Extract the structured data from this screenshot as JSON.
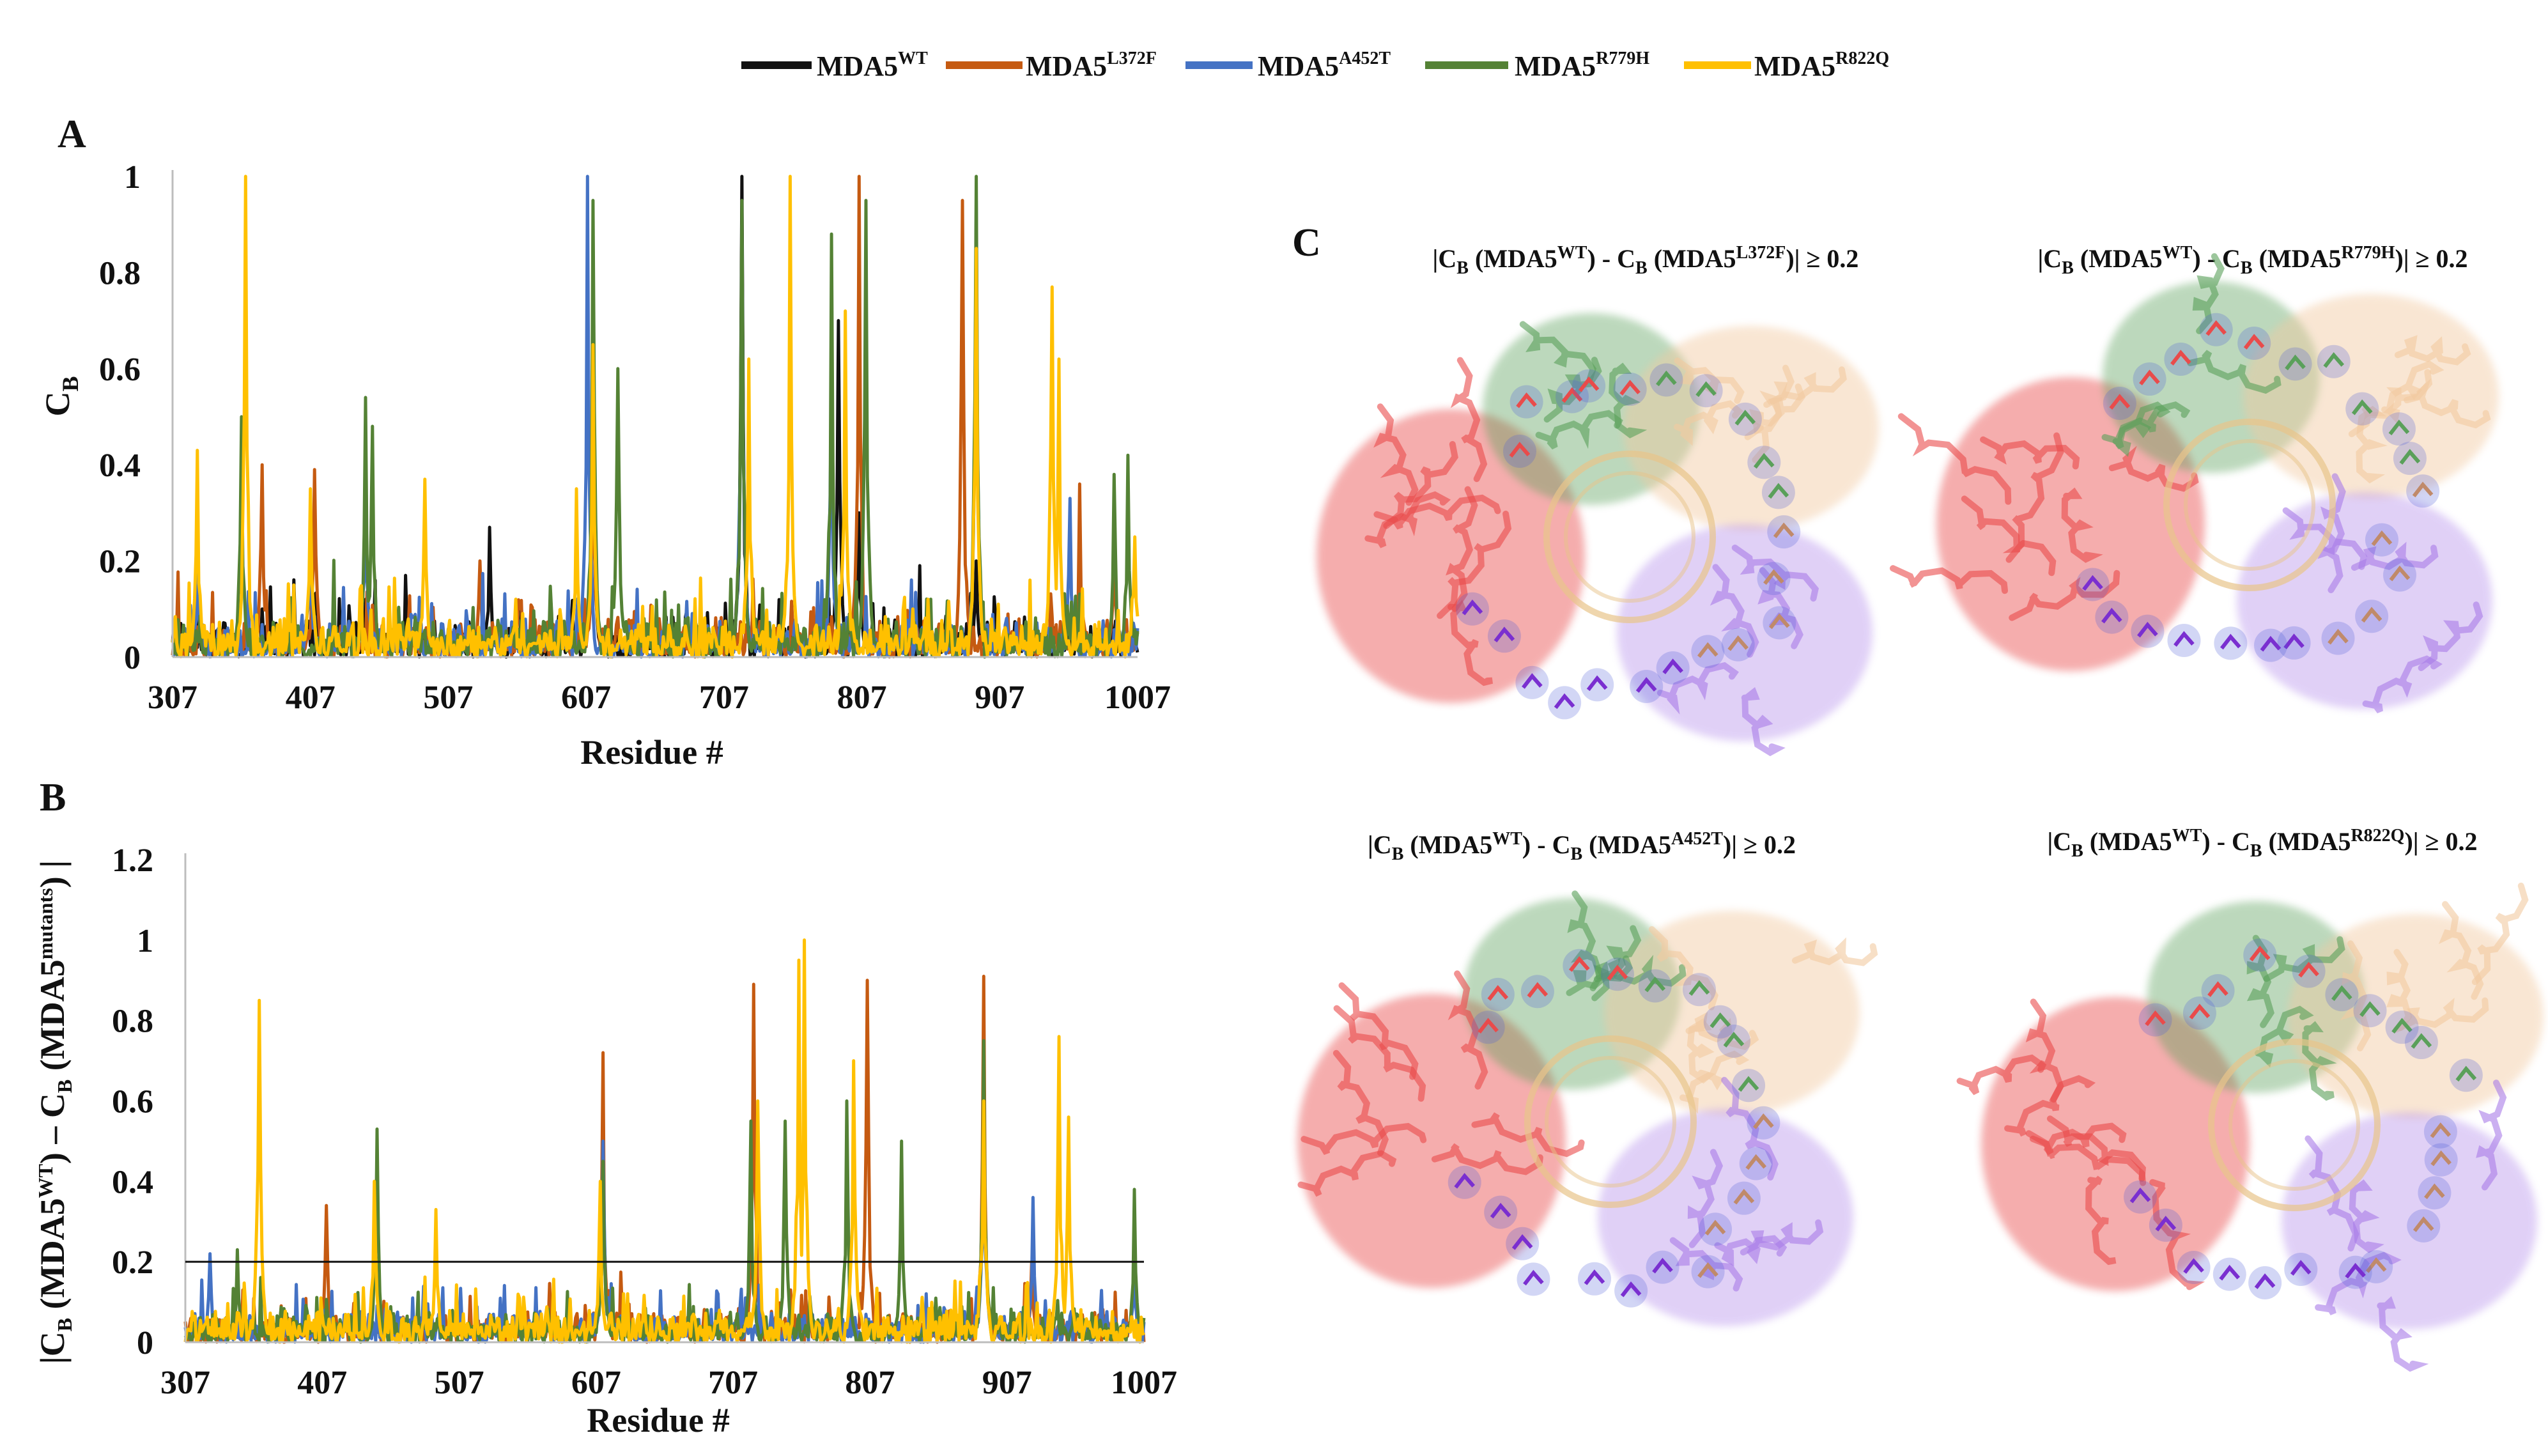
{
  "legend": {
    "series": [
      {
        "base": "MDA5",
        "sup": "WT",
        "color": "#111111"
      },
      {
        "base": "MDA5",
        "sup": "L372F",
        "color": "#c55a11"
      },
      {
        "base": "MDA5",
        "sup": "A452T",
        "color": "#4472c4"
      },
      {
        "base": "MDA5",
        "sup": "R779H",
        "color": "#548235"
      },
      {
        "base": "MDA5",
        "sup": "R822Q",
        "color": "#ffc000"
      }
    ]
  },
  "chart_data": [
    {
      "panel": "A",
      "type": "line",
      "xlabel": "Residue #",
      "ylabel": {
        "base": "C",
        "sub": "B"
      },
      "xlim": [
        307,
        1007
      ],
      "ylim": [
        0,
        1
      ],
      "x_ticks": [
        307,
        407,
        507,
        607,
        707,
        807,
        907,
        1007
      ],
      "y_ticks": [
        0,
        0.2,
        0.4,
        0.6,
        0.8,
        1
      ],
      "y_tick_labels": [
        "0",
        "0.2",
        "0.4",
        "0.6",
        "0.8",
        "1"
      ],
      "series": [
        {
          "name": "MDA5WT",
          "color": "#111111",
          "peaks": [
            [
              344,
              0.06
            ],
            [
              372,
              0.1
            ],
            [
              447,
              0.12
            ],
            [
              537,
              0.27
            ],
            [
              612,
              0.55
            ],
            [
              720,
              1.0
            ],
            [
              790,
              0.7
            ],
            [
              805,
              0.3
            ],
            [
              890,
              0.2
            ]
          ]
        },
        {
          "name": "MDA5L372F",
          "color": "#c55a11",
          "peaks": [
            [
              372,
              0.4
            ],
            [
              410,
              0.39
            ],
            [
              530,
              0.2
            ],
            [
              612,
              0.5
            ],
            [
              805,
              1.0
            ],
            [
              880,
              0.95
            ],
            [
              965,
              0.36
            ],
            [
              990,
              0.3
            ]
          ]
        },
        {
          "name": "MDA5A452T",
          "color": "#4472c4",
          "peaks": [
            [
              325,
              0.21
            ],
            [
              407,
              0.3
            ],
            [
              447,
              0.43
            ],
            [
              608,
              1.0
            ],
            [
              720,
              0.9
            ],
            [
              785,
              0.6
            ],
            [
              890,
              0.95
            ],
            [
              958,
              0.33
            ]
          ]
        },
        {
          "name": "MDA5R779H",
          "color": "#548235",
          "peaks": [
            [
              357,
              0.5
            ],
            [
              447,
              0.54
            ],
            [
              452,
              0.48
            ],
            [
              612,
              0.95
            ],
            [
              630,
              0.6
            ],
            [
              720,
              0.95
            ],
            [
              785,
              0.88
            ],
            [
              810,
              0.95
            ],
            [
              890,
              1.0
            ],
            [
              1000,
              0.42
            ],
            [
              990,
              0.38
            ]
          ]
        },
        {
          "name": "MDA5R822Q",
          "color": "#ffc000",
          "peaks": [
            [
              325,
              0.43
            ],
            [
              360,
              1.0
            ],
            [
              407,
              0.35
            ],
            [
              490,
              0.37
            ],
            [
              600,
              0.35
            ],
            [
              612,
              0.65
            ],
            [
              725,
              0.62
            ],
            [
              755,
              1.0
            ],
            [
              795,
              0.72
            ],
            [
              890,
              0.85
            ],
            [
              945,
              0.77
            ],
            [
              950,
              0.62
            ],
            [
              1005,
              0.25
            ]
          ]
        }
      ]
    },
    {
      "panel": "B",
      "type": "line",
      "xlabel": "Residue #",
      "ylabel": {
        "t1": "|C",
        "s1": "B",
        "t2": " (MDA5",
        "p1": "WT",
        "t3": ") – C",
        "s2": "B",
        "t4": " (MDA5",
        "p2": "mutants",
        "t5": ") |"
      },
      "xlim": [
        307,
        1007
      ],
      "ylim": [
        0,
        1.2
      ],
      "x_ticks": [
        307,
        407,
        507,
        607,
        707,
        807,
        907,
        1007
      ],
      "y_ticks": [
        0,
        0.2,
        0.4,
        0.6,
        0.8,
        1,
        1.2
      ],
      "y_tick_labels": [
        "0",
        "0.2",
        "0.4",
        "0.6",
        "0.8",
        "1",
        "1.2"
      ],
      "threshold": 0.2,
      "series": [
        {
          "name": "MDA5L372F",
          "color": "#c55a11",
          "peaks": [
            [
              410,
              0.34
            ],
            [
              612,
              0.72
            ],
            [
              722,
              0.89
            ],
            [
              805,
              0.9
            ],
            [
              890,
              0.91
            ],
            [
              925,
              0.2
            ]
          ]
        },
        {
          "name": "MDA5A452T",
          "color": "#4472c4",
          "peaks": [
            [
              325,
              0.22
            ],
            [
              612,
              0.5
            ],
            [
              890,
              0.56
            ],
            [
              926,
              0.36
            ],
            [
              1000,
              0.2
            ]
          ]
        },
        {
          "name": "MDA5R779H",
          "color": "#548235",
          "peaks": [
            [
              345,
              0.23
            ],
            [
              447,
              0.53
            ],
            [
              612,
              0.45
            ],
            [
              720,
              0.55
            ],
            [
              745,
              0.55
            ],
            [
              790,
              0.6
            ],
            [
              830,
              0.5
            ],
            [
              890,
              0.75
            ],
            [
              1000,
              0.38
            ]
          ]
        },
        {
          "name": "MDA5R822Q",
          "color": "#ffc000",
          "peaks": [
            [
              361,
              0.85
            ],
            [
              445,
              0.4
            ],
            [
              490,
              0.33
            ],
            [
              610,
              0.4
            ],
            [
              725,
              0.6
            ],
            [
              755,
              0.95
            ],
            [
              759,
              1.0
            ],
            [
              795,
              0.7
            ],
            [
              890,
              0.6
            ],
            [
              945,
              0.76
            ],
            [
              952,
              0.56
            ]
          ]
        }
      ]
    }
  ],
  "panel_labels": {
    "a": "A",
    "b": "B",
    "c": "C"
  },
  "structure_titles": [
    {
      "t1": "|C",
      "s1": "B",
      "t2": " (MDA5",
      "p1": "WT",
      "t3": ") - C",
      "s2": "B",
      "t4": " (MDA5",
      "p2": "L372F",
      "t5": ")| ≥ 0.2"
    },
    {
      "t1": "|C",
      "s1": "B",
      "t2": " (MDA5",
      "p1": "WT",
      "t3": ") - C",
      "s2": "B",
      "t4": " (MDA5",
      "p2": "R779H",
      "t5": ")| ≥ 0.2"
    },
    {
      "t1": "|C",
      "s1": "B",
      "t2": " (MDA5",
      "p1": "WT",
      "t3": ") - C",
      "s2": "B",
      "t4": " (MDA5",
      "p2": "A452T",
      "t5": ")| ≥ 0.2"
    },
    {
      "t1": "|C",
      "s1": "B",
      "t2": " (MDA5",
      "p1": "WT",
      "t3": ") - C",
      "s2": "B",
      "t4": " (MDA5",
      "p2": "R822Q",
      "t5": ")| ≥ 0.2"
    }
  ],
  "structure_colors": {
    "red_domain": "#e94b4b",
    "green_domain": "#5aa05a",
    "peach_domain": "#f2c9a0",
    "purple_domain": "#a87be8",
    "rna": "#e8c48a",
    "highlight": "#4a5bd6"
  }
}
